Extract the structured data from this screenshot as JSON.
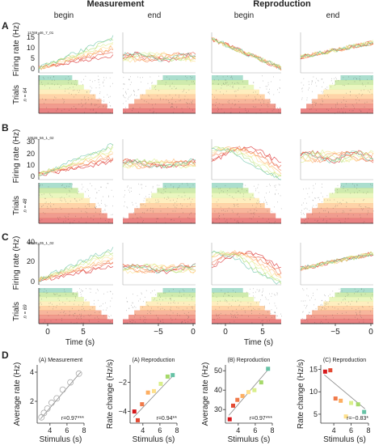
{
  "headers": {
    "measurement": "Measurement",
    "reproduction": "Reproduction",
    "begin": "begin",
    "end": "end"
  },
  "panels": [
    {
      "letter": "A",
      "unit_id": "11769_46_7_01",
      "n": "n = 64",
      "yticks": [
        "0",
        "5",
        "10",
        "15"
      ],
      "ymax": 15
    },
    {
      "letter": "B",
      "unit_id": "10526_56_1_02",
      "n": "n = 48",
      "yticks": [
        "0",
        "10",
        "20",
        "30"
      ],
      "ymax": 30
    },
    {
      "letter": "C",
      "unit_id": "10526_35_1_02",
      "n": "n = 69",
      "yticks": [
        "0",
        "20",
        "40"
      ],
      "ymax": 40
    }
  ],
  "labels": {
    "firing_rate": "Firing rate (Hz)",
    "trials": "Trials",
    "time": "Time (s)",
    "stimulus": "Stimulus (s)",
    "average_rate": "Average rate (Hz)",
    "rate_change": "Rate change (Hz/s)"
  },
  "time_ticks": {
    "begin": [
      "0",
      "5"
    ],
    "end": [
      "−5",
      "0"
    ]
  },
  "panel_D_letter": "D",
  "colors": [
    "#d7191c",
    "#e34a33",
    "#f07a4a",
    "#fdae61",
    "#fee08b",
    "#d9ef8b",
    "#a6d96a",
    "#66c2a5"
  ],
  "chart_data": [
    {
      "type": "scatter",
      "title": "(A) Measurement",
      "xlabel": "Stimulus (s)",
      "ylabel": "Average rate (Hz)",
      "xlim": [
        2.5,
        8
      ],
      "ylim": [
        0.5,
        4.5
      ],
      "xticks": [
        4,
        6,
        8
      ],
      "yticks": [
        2,
        4
      ],
      "marker": "open-circle",
      "x": [
        3,
        3.3,
        3.7,
        4.2,
        4.8,
        5.5,
        6.4,
        7.4
      ],
      "y": [
        0.9,
        1.2,
        1.5,
        1.9,
        2.2,
        2.8,
        3.3,
        3.9
      ],
      "fit": [
        [
          2.9,
          0.8
        ],
        [
          7.6,
          4.0
        ]
      ],
      "stat": "r=0.97***"
    },
    {
      "type": "scatter",
      "title": "(A) Reproduction",
      "xlabel": "Stimulus (s)",
      "ylabel": "Rate change (Hz/s)",
      "xlim": [
        2.5,
        8
      ],
      "ylim": [
        -4.8,
        -0.8
      ],
      "xticks": [
        4,
        6,
        8
      ],
      "yticks": [
        -4,
        -2
      ],
      "marker": "filled-square",
      "x": [
        3,
        3.4,
        3.9,
        4.6,
        5.3,
        6.1,
        6.9,
        7.5
      ],
      "y": [
        -4.0,
        -4.6,
        -3.5,
        -2.7,
        -2.6,
        -2.1,
        -1.6,
        -1.5
      ],
      "fit": [
        [
          2.9,
          -4.4
        ],
        [
          7.6,
          -1.5
        ]
      ],
      "stat": "r=0.94**"
    },
    {
      "type": "scatter",
      "title": "(B) Reproduction",
      "xlabel": "Stimulus (s)",
      "ylabel": "Average rate (Hz)",
      "xlim": [
        2.5,
        8
      ],
      "ylim": [
        23,
        53
      ],
      "xticks": [
        4,
        6,
        8
      ],
      "yticks": [
        30,
        40,
        50
      ],
      "marker": "filled-square",
      "x": [
        3,
        3.4,
        3.9,
        4.5,
        5.2,
        5.9,
        6.7,
        7.5
      ],
      "y": [
        25,
        32,
        35,
        37,
        39,
        40,
        44,
        51
      ],
      "fit": [
        [
          2.9,
          27
        ],
        [
          7.6,
          51
        ]
      ],
      "stat": "r=0.97***"
    },
    {
      "type": "scatter",
      "title": "(C) Reproduction",
      "xlabel": "Stimulus (s)",
      "ylabel": "Rate change (Hz/s)",
      "xlim": [
        2.5,
        8
      ],
      "ylim": [
        3,
        16
      ],
      "xticks": [
        4,
        6,
        8
      ],
      "yticks": [
        5,
        10,
        15
      ],
      "marker": "filled-square",
      "x": [
        3,
        3.6,
        4.2,
        4.8,
        5.4,
        6.0,
        6.8,
        7.5
      ],
      "y": [
        14.5,
        14.8,
        8.5,
        8.0,
        4.5,
        7.5,
        7.2,
        5.5
      ],
      "fit": [
        [
          2.9,
          13.8
        ],
        [
          7.6,
          6.2
        ]
      ],
      "stat": "r=−0.83*"
    }
  ]
}
